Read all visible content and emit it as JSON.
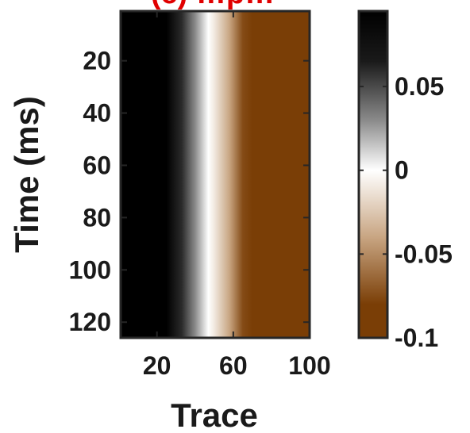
{
  "chart_data": {
    "type": "heatmap",
    "title": "(c) …p…",
    "xlabel": "Trace",
    "ylabel": "Time (ms)",
    "xlim": [
      1,
      100
    ],
    "ylim": [
      1,
      126
    ],
    "y_reversed": true,
    "x_ticks": [
      20,
      60,
      100
    ],
    "y_ticks": [
      20,
      40,
      60,
      80,
      100,
      120
    ],
    "colorbar": {
      "clim": [
        -0.1,
        0.095
      ],
      "ticks": [
        0.05,
        0,
        -0.05,
        -0.1
      ],
      "tick_labels": [
        "0.05",
        "0",
        "-0.05",
        "-0.1"
      ],
      "colormap": [
        {
          "value": -0.1,
          "color": "#7a3e06"
        },
        {
          "value": -0.08,
          "color": "#7a3e06"
        },
        {
          "value": -0.04,
          "color": "#c8a582"
        },
        {
          "value": 0.0,
          "color": "#ffffff"
        },
        {
          "value": 0.03,
          "color": "#8a8a8a"
        },
        {
          "value": 0.065,
          "color": "#1a1a1a"
        },
        {
          "value": 0.095,
          "color": "#000000"
        }
      ]
    },
    "profile_along_trace": [
      {
        "trace": 1,
        "value": 0.095
      },
      {
        "trace": 25,
        "value": 0.095
      },
      {
        "trace": 33,
        "value": 0.06
      },
      {
        "trace": 40,
        "value": 0.03
      },
      {
        "trace": 47,
        "value": 0.0
      },
      {
        "trace": 50,
        "value": -0.01
      },
      {
        "trace": 58,
        "value": -0.04
      },
      {
        "trace": 65,
        "value": -0.075
      },
      {
        "trace": 70,
        "value": -0.1
      },
      {
        "trace": 100,
        "value": -0.1
      }
    ],
    "constant_along_time": true
  }
}
